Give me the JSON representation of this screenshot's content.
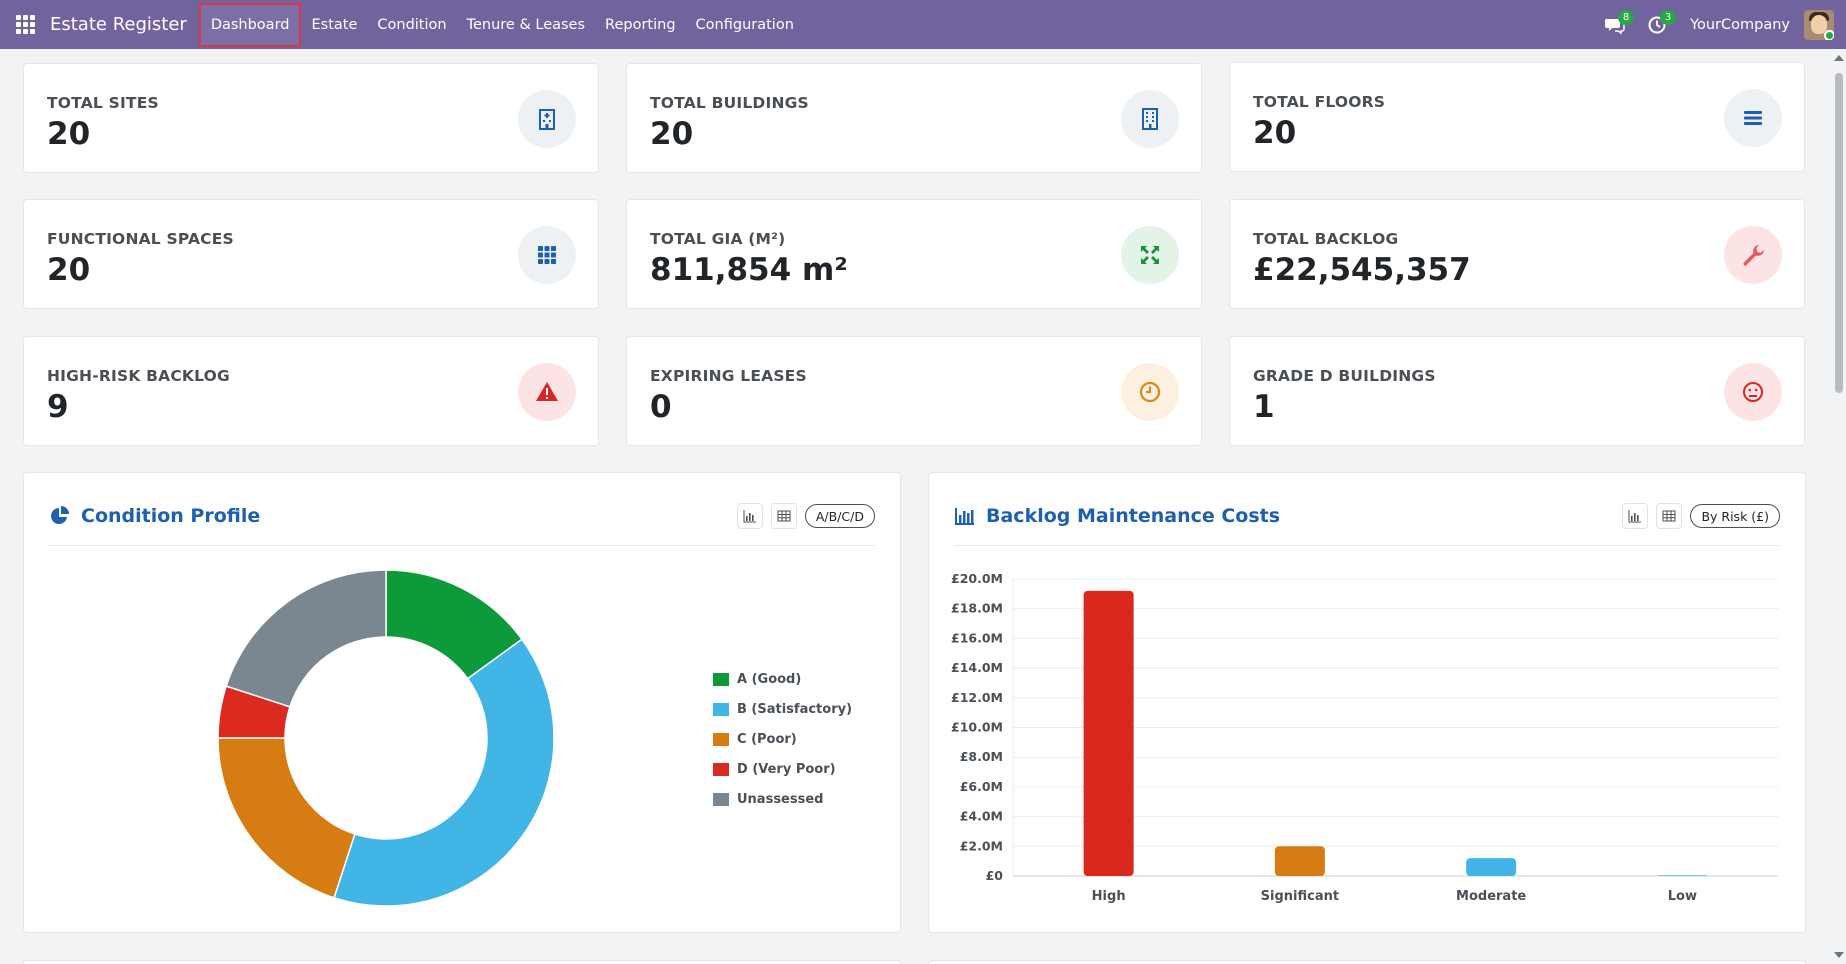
{
  "navbar": {
    "app_title": "Estate Register",
    "menu": [
      "Dashboard",
      "Estate",
      "Condition",
      "Tenure & Leases",
      "Reporting",
      "Configuration"
    ],
    "messages_count": "8",
    "activities_count": "3",
    "company": "YourCompany"
  },
  "kpis": [
    {
      "title": "TOTAL SITES",
      "value": "20",
      "icon": "hospital-building-icon",
      "color": "#1f5fb0",
      "bg": "#eef1f4"
    },
    {
      "title": "TOTAL BUILDINGS",
      "value": "20",
      "icon": "building-icon",
      "color": "#1f5fb0",
      "bg": "#eef1f4"
    },
    {
      "title": "TOTAL FLOORS",
      "value": "20",
      "icon": "layers-icon",
      "color": "#1f5fb0",
      "bg": "#eef1f4"
    },
    {
      "title": "FUNCTIONAL SPACES",
      "value": "20",
      "icon": "grid-icon",
      "color": "#1f5fb0",
      "bg": "#eef1f4"
    },
    {
      "title": "TOTAL GIA (M²)",
      "value": "811,854 m²",
      "icon": "expand-icon",
      "color": "#1e8e3e",
      "bg": "#e3f3e6"
    },
    {
      "title": "TOTAL BACKLOG",
      "value": "£22,545,357",
      "icon": "wrench-icon",
      "color": "#e45b5b",
      "bg": "#fce4e4"
    },
    {
      "title": "HIGH-RISK BACKLOG",
      "value": "9",
      "icon": "warning-icon",
      "color": "#d62828",
      "bg": "#fce4e4"
    },
    {
      "title": "EXPIRING LEASES",
      "value": "0",
      "icon": "clock-icon",
      "color": "#d9861c",
      "bg": "#fdf0e0"
    },
    {
      "title": "GRADE D BUILDINGS",
      "value": "1",
      "icon": "sad-face-icon",
      "color": "#d62828",
      "bg": "#fce4e4"
    }
  ],
  "condition_panel": {
    "title": "Condition Profile",
    "filter_label": "A/B/C/D"
  },
  "backlog_panel": {
    "title": "Backlog Maintenance Costs",
    "filter_label": "By Risk (£)"
  },
  "chart_data": [
    {
      "type": "pie",
      "categories": [
        "A (Good)",
        "B (Satisfactory)",
        "C (Poor)",
        "D (Very Poor)",
        "Unassessed"
      ],
      "values": [
        3,
        8,
        4,
        1,
        4
      ],
      "colors": [
        "#0d9a3a",
        "#41b6e6",
        "#d67c12",
        "#dc2a20",
        "#7a8791"
      ],
      "donut": true,
      "legend": "right"
    },
    {
      "type": "bar",
      "categories": [
        "High",
        "Significant",
        "Moderate",
        "Low"
      ],
      "values": [
        19200000,
        2000000,
        1200000,
        50000
      ],
      "colors": [
        "#d9281e",
        "#d67c12",
        "#41b6e6",
        "#7fc8e8"
      ],
      "ylim": [
        0,
        20000000
      ],
      "yticks": [
        "£0",
        "£2.0M",
        "£4.0M",
        "£6.0M",
        "£8.0M",
        "£10.0M",
        "£12.0M",
        "£14.0M",
        "£16.0M",
        "£18.0M",
        "£20.0M"
      ],
      "grid": true
    }
  ]
}
